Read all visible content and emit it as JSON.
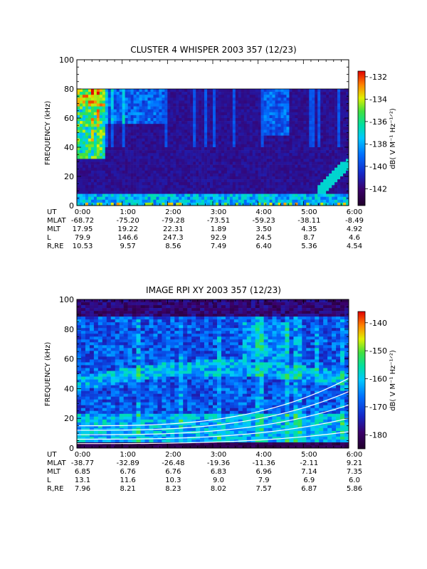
{
  "chart_data": [
    {
      "type": "heatmap",
      "title": "CLUSTER 4 WHISPER 2003 357 (12/23)",
      "ylabel": "FREQUENCY (kHz)",
      "ylim": [
        0,
        100
      ],
      "y_ticks": [
        "0",
        "20",
        "40",
        "60",
        "80",
        "100"
      ],
      "x_ticks": [
        "0:00",
        "1:00",
        "2:00",
        "3:00",
        "4:00",
        "5:00",
        "6:00"
      ],
      "colorbar": {
        "label": "dB( V M⁻¹ Hz⁻¹ᐟ²)",
        "range": [
          -143.5,
          -131.5
        ],
        "ticks": [
          "-132",
          "-134",
          "-136",
          "-138",
          "-140",
          "-142"
        ],
        "tick_values": [
          -132,
          -134,
          -136,
          -138,
          -140,
          -142
        ]
      },
      "data_top_khz": 80,
      "ephemeris": {
        "labels": [
          "UT",
          "MLAT",
          "MLT",
          "L",
          "R,RE"
        ],
        "UT": [
          "0:00",
          "1:00",
          "2:00",
          "3:00",
          "4:00",
          "5:00",
          "6:00"
        ],
        "MLAT": [
          "-68.72",
          "-75.20",
          "-79.28",
          "-73.51",
          "-59.23",
          "-38.11",
          "-8.49"
        ],
        "MLT": [
          "17.95",
          "19.22",
          "22.31",
          "1.89",
          "3.50",
          "4.35",
          "4.92"
        ],
        "L": [
          "79.9",
          "146.6",
          "247.3",
          "92.9",
          "24.5",
          "8.7",
          "4.6"
        ],
        "R,RE": [
          "10.53",
          "9.57",
          "8.56",
          "7.49",
          "6.40",
          "5.36",
          "4.54"
        ]
      }
    },
    {
      "type": "heatmap",
      "title": "IMAGE RPI XY 2003 357 (12/23)",
      "ylabel": "FREQUENCY (kHz)",
      "ylim": [
        0,
        100
      ],
      "y_ticks": [
        "0",
        "20",
        "40",
        "60",
        "80",
        "100"
      ],
      "x_ticks": [
        "0:00",
        "1:00",
        "2:00",
        "3:00",
        "4:00",
        "5:00",
        "6:00"
      ],
      "colorbar": {
        "label": "dB( V M⁻¹ Hz⁻¹ᐟ²)",
        "range": [
          -185,
          -136
        ],
        "ticks": [
          "-140",
          "-150",
          "-160",
          "-170",
          "-180"
        ],
        "tick_values": [
          -140,
          -150,
          -160,
          -170,
          -180
        ]
      },
      "ephemeris": {
        "labels": [
          "UT",
          "MLAT",
          "MLT",
          "L",
          "R,RE"
        ],
        "UT": [
          "0:00",
          "1:00",
          "2:00",
          "3:00",
          "4:00",
          "5:00",
          "6:00"
        ],
        "MLAT": [
          "-38.77",
          "-32.89",
          "-26.48",
          "-19.36",
          "-11.36",
          "-2.11",
          "9.21"
        ],
        "MLT": [
          "6.85",
          "6.76",
          "6.76",
          "6.83",
          "6.96",
          "7.14",
          "7.35"
        ],
        "L": [
          "13.1",
          "11.6",
          "10.3",
          "9.0",
          "7.9",
          "6.9",
          "6.0"
        ],
        "R,RE": [
          "7.96",
          "8.21",
          "8.23",
          "8.02",
          "7.57",
          "6.87",
          "5.86"
        ]
      }
    }
  ]
}
